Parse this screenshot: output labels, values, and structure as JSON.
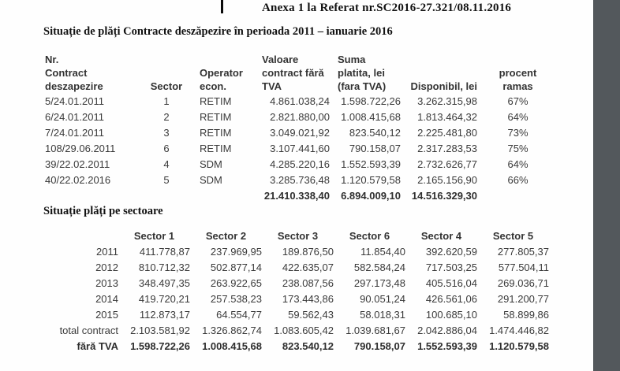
{
  "page": {
    "annex_header": "Anexa 1 la Referat nr.SC2016-27.321/08.11.2016",
    "title": "Situație de plăți Contracte deszăpezire în perioada 2011 – ianuarie 2016",
    "section2_title": "Situație plăți pe sectoare"
  },
  "contracts_table": {
    "headers": [
      "Nr.\nContract\ndeszapezire",
      "Sector",
      "Operator\necon.",
      "Valoare\ncontract fără\nTVA",
      "Suma\nplatita, lei\n(fara TVA)",
      "Disponibil, lei",
      "procent\nramas"
    ],
    "rows": [
      [
        "5/24.01.2011",
        "1",
        "RETIM",
        "4.861.038,24",
        "1.598.722,26",
        "3.262.315,98",
        "67%"
      ],
      [
        "6/24.01.2011",
        "2",
        "RETIM",
        "2.821.880,00",
        "1.008.415,68",
        "1.813.464,32",
        "64%"
      ],
      [
        "7/24.01.2011",
        "3",
        "RETIM",
        "3.049.021,92",
        "823.540,12",
        "2.225.481,80",
        "73%"
      ],
      [
        "108/29.06.2011",
        "6",
        "RETIM",
        "3.107.441,60",
        "790.158,07",
        "2.317.283,53",
        "75%"
      ],
      [
        "39/22.02.2011",
        "4",
        "SDM",
        "4.285.220,16",
        "1.552.593,39",
        "2.732.626,77",
        "64%"
      ],
      [
        "40/22.02.2016",
        "5",
        "SDM",
        "3.285.736,48",
        "1.120.579,58",
        "2.165.156,90",
        "66%"
      ]
    ],
    "totals": [
      "",
      "",
      "",
      "21.410.338,40",
      "6.894.009,10",
      "14.516.329,30",
      ""
    ]
  },
  "sectors_table": {
    "headers": [
      "",
      "Sector 1",
      "Sector 2",
      "Sector 3",
      "Sector 6",
      "Sector 4",
      "Sector 5"
    ],
    "rows": [
      [
        "2011",
        "411.778,87",
        "237.969,95",
        "189.876,50",
        "11.854,40",
        "392.620,59",
        "277.805,37"
      ],
      [
        "2012",
        "810.712,32",
        "502.877,14",
        "422.635,07",
        "582.584,24",
        "717.503,25",
        "577.504,11"
      ],
      [
        "2013",
        "348.497,35",
        "263.922,65",
        "238.087,56",
        "297.173,48",
        "405.516,04",
        "269.036,71"
      ],
      [
        "2014",
        "419.720,21",
        "257.538,23",
        "173.443,86",
        "90.051,24",
        "426.561,06",
        "291.200,77"
      ],
      [
        "2015",
        "112.873,17",
        "64.554,77",
        "59.562,43",
        "58.018,31",
        "100.685,10",
        "58.899,86"
      ],
      [
        "total contract",
        "2.103.581,92",
        "1.326.862,74",
        "1.083.605,42",
        "1.039.681,67",
        "2.042.886,04",
        "1.474.446,82"
      ]
    ],
    "bold_row": [
      "fără TVA",
      "1.598.722,26",
      "1.008.415,68",
      "823.540,12",
      "790.158,07",
      "1.552.593,39",
      "1.120.579,58"
    ]
  }
}
